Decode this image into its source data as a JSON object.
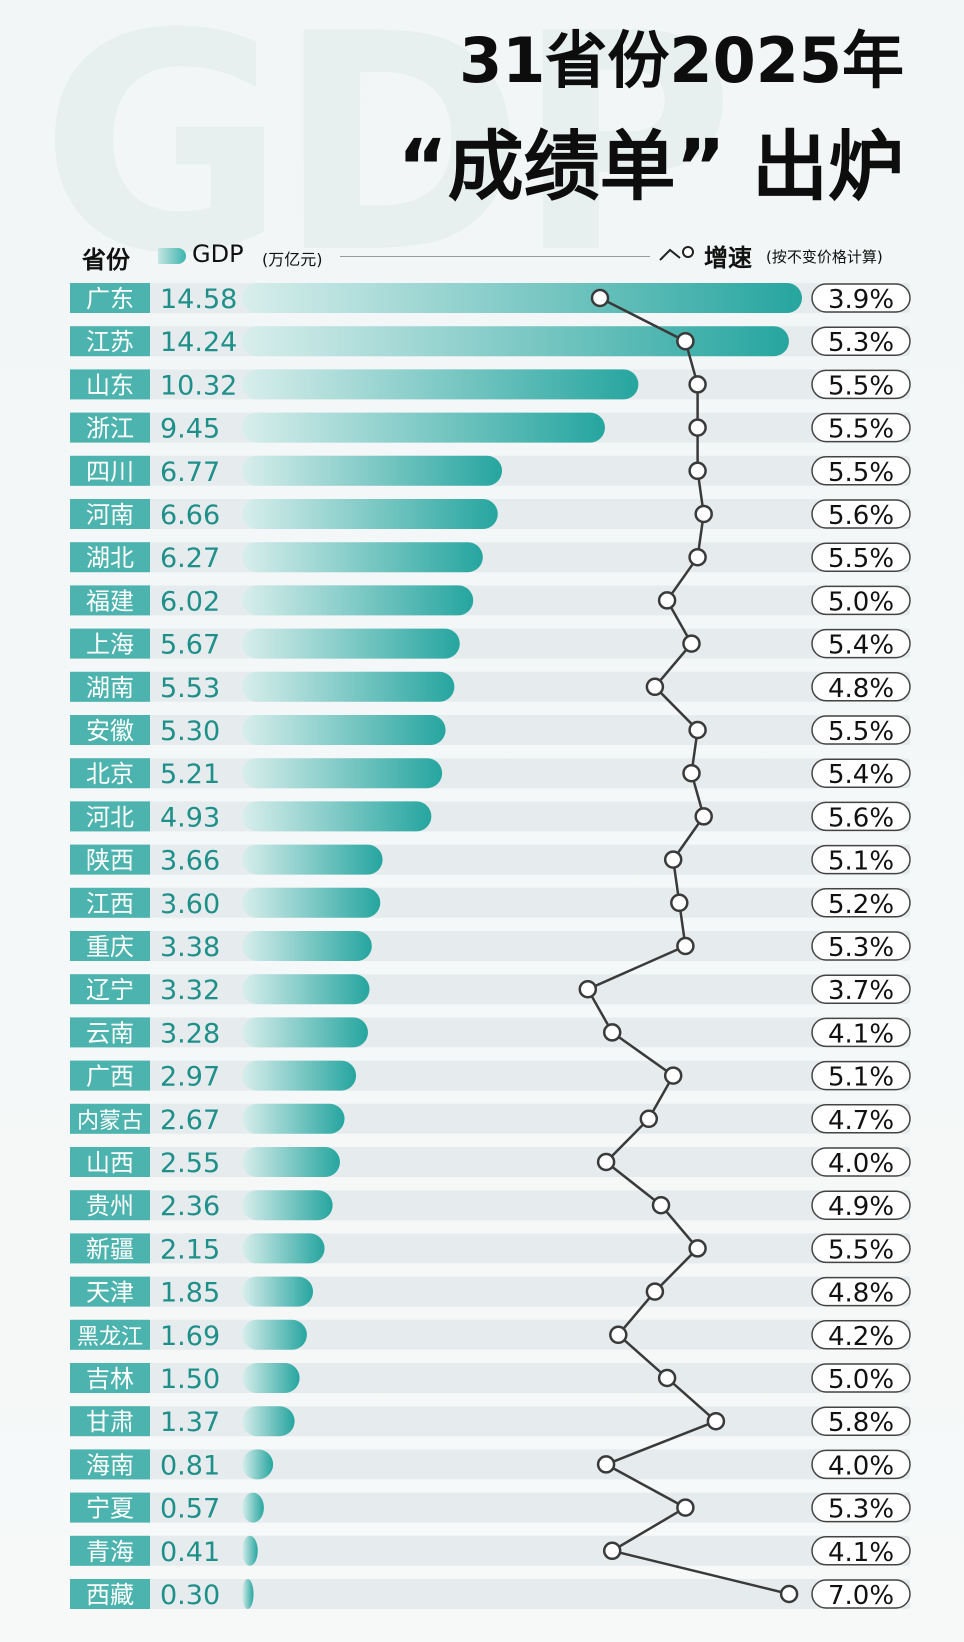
{
  "header": {
    "watermark": "GDP",
    "title_line1": "31省份2025年",
    "title_line2": "“成绩单” 出炉"
  },
  "legend": {
    "province_label": "省份",
    "gdp_label": "GDP",
    "gdp_unit": "(万亿元)",
    "growth_label": "增速",
    "growth_note": "(按不变价格计算)"
  },
  "colors": {
    "bar_dark": "#2aa8a2",
    "bar_light": "#d4ecea",
    "label_bg": "#4db3af",
    "gdp_text": "#1f8f8a",
    "row_bg": "#e6eced"
  },
  "chart_data": {
    "type": "bar",
    "title": "31省份2025年“成绩单”出炉",
    "xlabel": "GDP (万亿元)",
    "ylabel": "省份",
    "xlim": [
      0,
      14.58
    ],
    "categories": [
      "广东",
      "江苏",
      "山东",
      "浙江",
      "四川",
      "河南",
      "湖北",
      "福建",
      "上海",
      "湖南",
      "安徽",
      "北京",
      "河北",
      "陕西",
      "江西",
      "重庆",
      "辽宁",
      "云南",
      "广西",
      "内蒙古",
      "山西",
      "贵州",
      "新疆",
      "天津",
      "黑龙江",
      "吉林",
      "甘肃",
      "海南",
      "宁夏",
      "青海",
      "西藏"
    ],
    "series": [
      {
        "name": "GDP (万亿元)",
        "values": [
          14.58,
          14.24,
          10.32,
          9.45,
          6.77,
          6.66,
          6.27,
          6.02,
          5.67,
          5.53,
          5.3,
          5.21,
          4.93,
          3.66,
          3.6,
          3.38,
          3.32,
          3.28,
          2.97,
          2.67,
          2.55,
          2.36,
          2.15,
          1.85,
          1.69,
          1.5,
          1.37,
          0.81,
          0.57,
          0.41,
          0.3
        ]
      },
      {
        "name": "增速 (按不变价格计算)",
        "unit": "%",
        "values": [
          3.9,
          5.3,
          5.5,
          5.5,
          5.5,
          5.6,
          5.5,
          5.0,
          5.4,
          4.8,
          5.5,
          5.4,
          5.6,
          5.1,
          5.2,
          5.3,
          3.7,
          4.1,
          5.1,
          4.7,
          4.0,
          4.9,
          5.5,
          4.8,
          4.2,
          5.0,
          5.8,
          4.0,
          5.3,
          4.1,
          7.0
        ]
      }
    ],
    "gdp_labels": [
      "14.58",
      "14.24",
      "10.32",
      "9.45",
      "6.77",
      "6.66",
      "6.27",
      "6.02",
      "5.67",
      "5.53",
      "5.30",
      "5.21",
      "4.93",
      "3.66",
      "3.60",
      "3.38",
      "3.32",
      "3.28",
      "2.97",
      "2.67",
      "2.55",
      "2.36",
      "2.15",
      "1.85",
      "1.69",
      "1.50",
      "1.37",
      "0.81",
      "0.57",
      "0.41",
      "0.30"
    ],
    "growth_labels": [
      "3.9%",
      "5.3%",
      "5.5%",
      "5.5%",
      "5.5%",
      "5.6%",
      "5.5%",
      "5.0%",
      "5.4%",
      "4.8%",
      "5.5%",
      "5.4%",
      "5.6%",
      "5.1%",
      "5.2%",
      "5.3%",
      "3.7%",
      "4.1%",
      "5.1%",
      "4.7%",
      "4.0%",
      "4.9%",
      "5.5%",
      "4.8%",
      "4.2%",
      "5.0%",
      "5.8%",
      "4.0%",
      "5.3%",
      "4.1%",
      "7.0%"
    ]
  }
}
